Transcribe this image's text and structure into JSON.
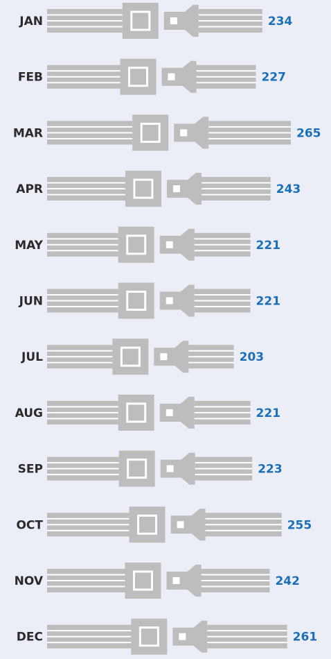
{
  "chart_data": {
    "type": "bar",
    "orientation": "horizontal",
    "categories": [
      "JAN",
      "FEB",
      "MAR",
      "APR",
      "MAY",
      "JUN",
      "JUL",
      "AUG",
      "SEP",
      "OCT",
      "NOV",
      "DEC"
    ],
    "values": [
      234,
      227,
      265,
      243,
      221,
      221,
      203,
      221,
      223,
      255,
      242,
      261
    ],
    "color": "#bdbdbd",
    "label_color": "#1a6fb8"
  }
}
